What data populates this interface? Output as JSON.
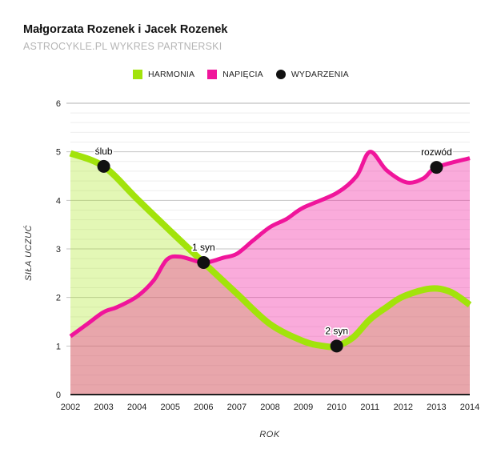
{
  "header": {
    "title": "Małgorzata Rozenek i Jacek Rozenek",
    "subtitle": "ASTROCYKLE.PL WYKRES PARTNERSKI"
  },
  "legend": [
    {
      "label": "HARMONIA",
      "color": "#a2e30b",
      "shape": "square"
    },
    {
      "label": "NAPIĘCIA",
      "color": "#f0159b",
      "shape": "square"
    },
    {
      "label": "WYDARZENIA",
      "color": "#111111",
      "shape": "circle"
    }
  ],
  "chart_data": {
    "type": "area",
    "title": "Małgorzata Rozenek i Jacek Rozenek",
    "subtitle": "ASTROCYKLE.PL WYKRES PARTNERSKI",
    "xlabel": "ROK",
    "ylabel": "SIŁA UCZUĆ",
    "xlim": [
      2002,
      2014
    ],
    "ylim": [
      0,
      6
    ],
    "x_ticks": [
      "2002",
      "2003",
      "2004",
      "2005",
      "2006",
      "2007",
      "2008",
      "2009",
      "2010",
      "2011",
      "2012",
      "2013",
      "2014"
    ],
    "y_ticks": [
      "0",
      "1",
      "2",
      "3",
      "4",
      "5",
      "6"
    ],
    "minor_grid_step": 0.2,
    "grid": "on",
    "legend_position": "top",
    "series": [
      {
        "name": "HARMONIA",
        "color": "#a2e30b",
        "fill": "rgba(162,227,11,0.30)",
        "stroke_width": 8,
        "points": [
          [
            2002,
            4.97
          ],
          [
            2003,
            4.7
          ],
          [
            2004,
            4.03
          ],
          [
            2005,
            3.37
          ],
          [
            2006,
            2.72
          ],
          [
            2007,
            2.08
          ],
          [
            2008,
            1.45
          ],
          [
            2009,
            1.1
          ],
          [
            2009.6,
            1.0
          ],
          [
            2010,
            1.0
          ],
          [
            2010.5,
            1.18
          ],
          [
            2011,
            1.55
          ],
          [
            2011.5,
            1.8
          ],
          [
            2012,
            2.02
          ],
          [
            2012.8,
            2.18
          ],
          [
            2013.4,
            2.12
          ],
          [
            2014,
            1.85
          ]
        ]
      },
      {
        "name": "NAPIĘCIA",
        "color": "#f0159b",
        "fill": "rgba(240,21,155,0.36)",
        "stroke_width": 5,
        "points": [
          [
            2002,
            1.2
          ],
          [
            2002.5,
            1.45
          ],
          [
            2003,
            1.7
          ],
          [
            2003.4,
            1.8
          ],
          [
            2004,
            2.02
          ],
          [
            2004.5,
            2.35
          ],
          [
            2004.9,
            2.78
          ],
          [
            2005.3,
            2.84
          ],
          [
            2006,
            2.72
          ],
          [
            2006.6,
            2.82
          ],
          [
            2007,
            2.9
          ],
          [
            2007.5,
            3.18
          ],
          [
            2008,
            3.45
          ],
          [
            2008.5,
            3.62
          ],
          [
            2009,
            3.85
          ],
          [
            2010,
            4.15
          ],
          [
            2010.6,
            4.5
          ],
          [
            2011,
            5.0
          ],
          [
            2011.5,
            4.62
          ],
          [
            2012.1,
            4.37
          ],
          [
            2012.6,
            4.45
          ],
          [
            2013,
            4.68
          ],
          [
            2014,
            4.87
          ]
        ]
      }
    ],
    "events": [
      {
        "label": "ślub",
        "x": 2003,
        "y": 4.7
      },
      {
        "label": "1 syn",
        "x": 2006,
        "y": 2.72
      },
      {
        "label": "2 syn",
        "x": 2010,
        "y": 1.0
      },
      {
        "label": "rozwód",
        "x": 2013,
        "y": 4.68
      }
    ],
    "event_color": "#111111"
  }
}
